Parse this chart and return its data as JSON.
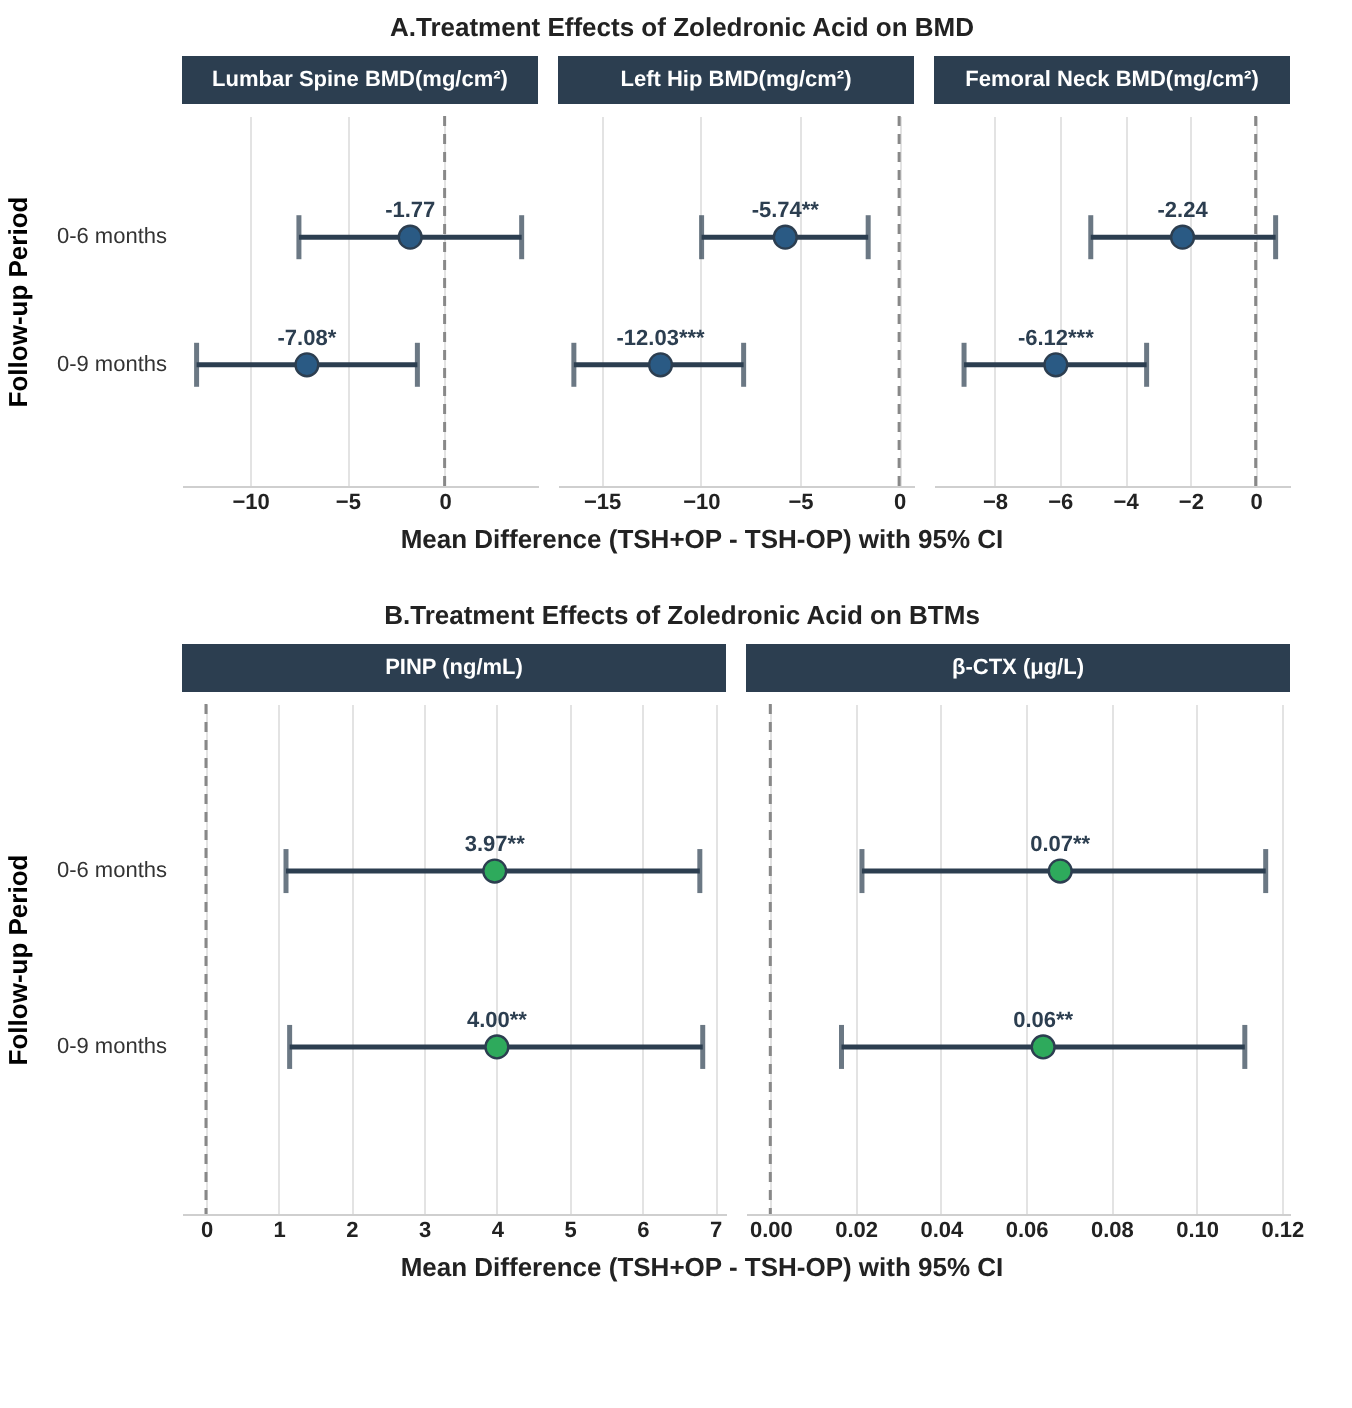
{
  "chart_data": [
    {
      "type": "scatter",
      "orientation": "horizontal",
      "title": "Lumbar Spine BMD(mg/cm²)",
      "annotations": [
        "A.Treatment Effects of Zoledronic Acid on BMD"
      ],
      "ylabel": "Follow-up Period",
      "categories": [
        "0-6 months",
        "0-9 months"
      ],
      "values": [
        -1.77,
        -7.08
      ],
      "errors": [
        [
          -7.49,
          3.96
        ],
        [
          -12.75,
          -1.4
        ]
      ],
      "value_labels": [
        "-1.77",
        "-7.08*"
      ],
      "color": "#2a5a84",
      "xlim": [
        -13.5,
        4.8
      ],
      "xticks": [
        -10,
        -5,
        0
      ],
      "ref_lines": [
        {
          "axis": "x",
          "value": 0,
          "line_style": "dashed",
          "color": "#888888"
        }
      ],
      "grid": "x",
      "marker": "circle"
    },
    {
      "type": "scatter",
      "orientation": "horizontal",
      "title": "Left Hip BMD(mg/cm²)",
      "xlabel": "Mean Difference (TSH+OP - TSH-OP) with 95% CI",
      "categories": [
        null,
        null
      ],
      "values": [
        -5.74,
        -12.03
      ],
      "errors": [
        [
          -9.96,
          -1.56
        ],
        [
          -16.4,
          -7.84
        ]
      ],
      "value_labels": [
        "-5.74**",
        "-12.03***"
      ],
      "color": "#2a5a84",
      "xlim": [
        -17.2,
        0.75
      ],
      "xticks": [
        -15,
        -10,
        -5,
        0
      ],
      "ref_lines": [
        {
          "axis": "x",
          "value": 0,
          "line_style": "dashed",
          "color": "#888888"
        }
      ],
      "grid": "x",
      "marker": "circle",
      "tick_labels": "x"
    },
    {
      "type": "scatter",
      "orientation": "horizontal",
      "title": "Femoral Neck BMD(mg/cm²)",
      "categories": [
        null,
        null
      ],
      "values": [
        -2.24,
        -6.12
      ],
      "errors": [
        [
          -5.05,
          0.61
        ],
        [
          -8.93,
          -3.34
        ]
      ],
      "value_labels": [
        "-2.24",
        "-6.12***"
      ],
      "color": "#2a5a84",
      "xlim": [
        -9.85,
        1.05
      ],
      "xticks": [
        -8,
        -6,
        -4,
        -2,
        0
      ],
      "ref_lines": [
        {
          "axis": "x",
          "value": 0,
          "line_style": "dashed",
          "color": "#888888"
        }
      ],
      "grid": "x",
      "marker": "circle",
      "tick_labels": "x"
    },
    {
      "type": "scatter",
      "orientation": "horizontal",
      "title": "PINP (ng/mL)",
      "annotations": [
        "B.Treatment Effects of Zoledronic Acid on BTMs"
      ],
      "ylabel": "Follow-up Period",
      "xlabel": "Mean Difference (TSH+OP - TSH-OP) with 95% CI",
      "categories": [
        "0-6 months",
        "0-9 months"
      ],
      "values": [
        3.97,
        4.0
      ],
      "errors": [
        [
          1.1,
          6.79
        ],
        [
          1.15,
          6.83
        ]
      ],
      "value_labels": [
        "3.97**",
        "4.00**"
      ],
      "color": "#2eaa5c",
      "xlim": [
        -0.33,
        7.15
      ],
      "xticks": [
        0,
        1,
        2,
        3,
        4,
        5,
        6,
        7
      ],
      "ref_lines": [
        {
          "axis": "x",
          "value": 0,
          "line_style": "dashed",
          "color": "#888888"
        }
      ],
      "grid": "x",
      "marker": "circle"
    },
    {
      "type": "scatter",
      "orientation": "horizontal",
      "title": "β-CTX (μg/L)",
      "categories": [
        null,
        null
      ],
      "values": [
        0.068,
        0.064
      ],
      "errors": [
        [
          0.0215,
          0.1162
        ],
        [
          0.0167,
          0.1113
        ]
      ],
      "value_labels": [
        "0.07**",
        "0.06**"
      ],
      "color": "#2eaa5c",
      "xlim": [
        -0.0057,
        0.1219
      ],
      "xticks": [
        {
          "value": 0,
          "label": "0.00"
        },
        {
          "value": 0.02,
          "label": "0.02"
        },
        {
          "value": 0.04,
          "label": "0.04"
        },
        {
          "value": 0.06,
          "label": "0.06"
        },
        {
          "value": 0.08,
          "label": "0.08"
        },
        {
          "value": 0.1,
          "label": "0.10"
        },
        {
          "value": 0.12,
          "label": "0.12"
        }
      ],
      "ref_lines": [
        {
          "axis": "x",
          "value": 0,
          "line_style": "dashed",
          "color": "#888888"
        }
      ],
      "grid": "x",
      "marker": "circle",
      "tick_labels": "x"
    }
  ]
}
